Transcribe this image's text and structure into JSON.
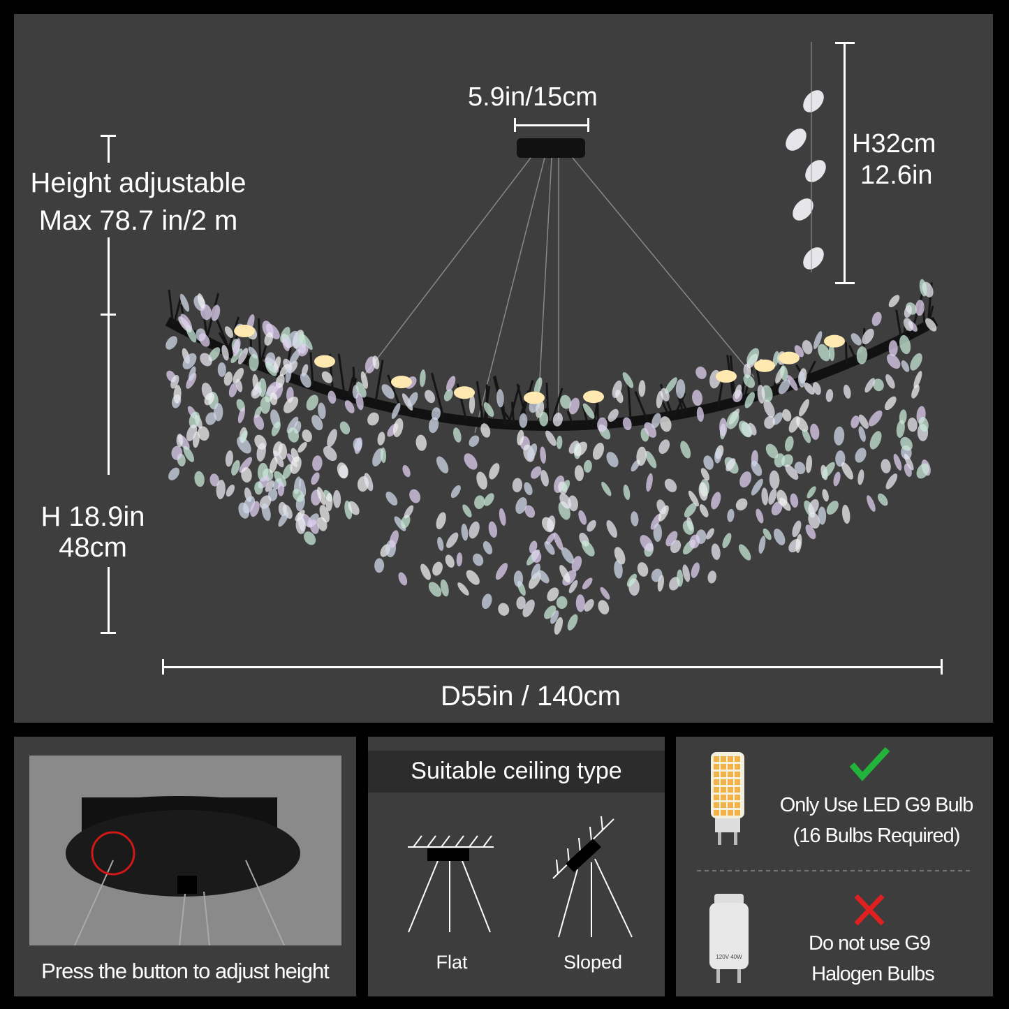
{
  "dimensions": {
    "top_width": "5.9in/15cm",
    "height_adjustable_line1": "Height adjustable",
    "height_adjustable_line2": "Max 78.7 in/2 m",
    "pendant_height_cm": "H32cm",
    "pendant_height_in": "12.6in",
    "body_height_in": "H 18.9in",
    "body_height_cm": "48cm",
    "diameter": "D55in / 140cm"
  },
  "panel_button": {
    "caption": "Press the button to adjust height"
  },
  "panel_ceiling": {
    "title": "Suitable ceiling type",
    "types": [
      "Flat",
      "Sloped"
    ]
  },
  "panel_bulbs": {
    "ok_line1": "Only Use LED G9 Bulb",
    "ok_line2": "(16 Bulbs Required)",
    "bad_line1": "Do not use G9",
    "bad_line2": "Halogen Bulbs",
    "halogen_label": "120V 40W",
    "check_color": "#22b33a",
    "cross_color": "#e02020"
  },
  "colors": {
    "background": "#000000",
    "panel": "#3e3e3e",
    "highlight": "#d01818"
  }
}
